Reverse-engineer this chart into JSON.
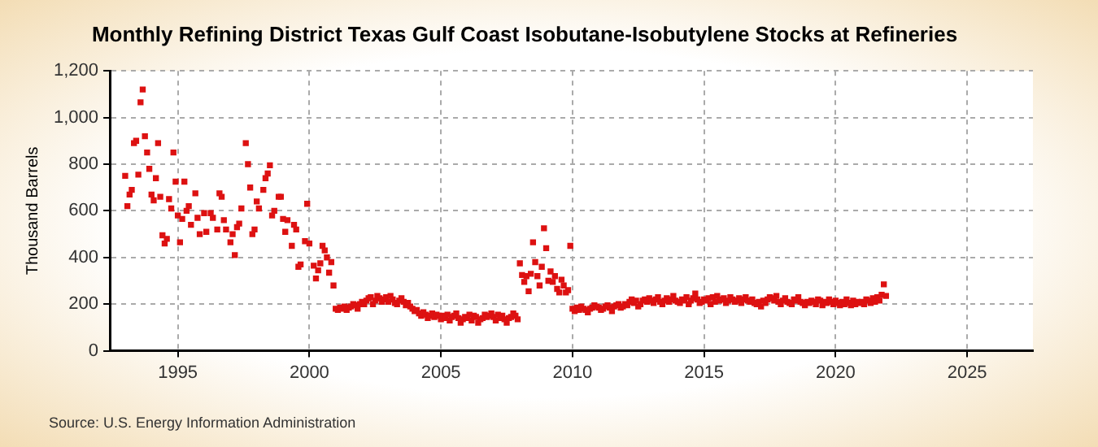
{
  "chart_data": {
    "type": "scatter",
    "title": "Monthly Refining District Texas Gulf Coast Isobutane-Isobutylene Stocks at Refineries",
    "ylabel": "Thousand Barrels",
    "annotations": [
      "Source: U.S. Energy Information Administration"
    ],
    "series": [
      {
        "color": "#dd1111",
        "x": [
          "1993-01",
          "1993-02",
          "1993-03",
          "1993-04",
          "1993-05",
          "1993-06",
          "1993-07",
          "1993-08",
          "1993-09",
          "1993-10",
          "1993-11",
          "1993-12",
          "1994-01",
          "1994-02",
          "1994-03",
          "1994-04",
          "1994-05",
          "1994-06",
          "1994-07",
          "1994-08",
          "1994-09",
          "1994-10",
          "1994-11",
          "1994-12",
          "1995-01",
          "1995-02",
          "1995-03",
          "1995-04",
          "1995-05",
          "1995-06",
          "1995-07",
          "1995-09",
          "1995-10",
          "1995-11",
          "1996-01",
          "1996-02",
          "1996-04",
          "1996-05",
          "1996-07",
          "1996-08",
          "1996-09",
          "1996-10",
          "1996-11",
          "1997-01",
          "1997-02",
          "1997-03",
          "1997-04",
          "1997-05",
          "1997-06",
          "1997-08",
          "1997-09",
          "1997-10",
          "1997-11",
          "1997-12",
          "1998-01",
          "1998-02",
          "1998-04",
          "1998-05",
          "1998-06",
          "1998-07",
          "1998-08",
          "1998-09",
          "1998-11",
          "1998-12",
          "1999-01",
          "1999-02",
          "1999-03",
          "1999-05",
          "1999-06",
          "1999-07",
          "1999-08",
          "1999-09",
          "1999-11",
          "1999-12",
          "2000-01",
          "2000-03",
          "2000-04",
          "2000-05",
          "2000-06",
          "2000-07",
          "2000-08",
          "2000-09",
          "2000-10",
          "2000-11",
          "2000-12",
          "2001-01",
          "2001-02",
          "2001-03",
          "2001-04",
          "2001-05",
          "2001-06",
          "2001-07",
          "2001-08",
          "2001-09",
          "2001-10",
          "2001-11",
          "2001-12",
          "2002-01",
          "2002-02",
          "2002-03",
          "2002-04",
          "2002-05",
          "2002-06",
          "2002-07",
          "2002-08",
          "2002-09",
          "2002-10",
          "2002-11",
          "2002-12",
          "2003-01",
          "2003-02",
          "2003-03",
          "2003-04",
          "2003-05",
          "2003-06",
          "2003-07",
          "2003-08",
          "2003-09",
          "2003-10",
          "2003-11",
          "2003-12",
          "2004-01",
          "2004-02",
          "2004-03",
          "2004-04",
          "2004-05",
          "2004-06",
          "2004-07",
          "2004-08",
          "2004-09",
          "2004-10",
          "2004-11",
          "2004-12",
          "2005-01",
          "2005-02",
          "2005-03",
          "2005-04",
          "2005-05",
          "2005-06",
          "2005-07",
          "2005-08",
          "2005-09",
          "2005-10",
          "2005-11",
          "2005-12",
          "2006-01",
          "2006-02",
          "2006-03",
          "2006-04",
          "2006-05",
          "2006-06",
          "2006-07",
          "2006-08",
          "2006-09",
          "2006-10",
          "2006-11",
          "2006-12",
          "2007-01",
          "2007-02",
          "2007-03",
          "2007-04",
          "2007-05",
          "2007-06",
          "2007-07",
          "2007-08",
          "2007-09",
          "2007-10",
          "2007-11",
          "2007-12",
          "2008-01",
          "2008-02",
          "2008-03",
          "2008-04",
          "2008-05",
          "2008-06",
          "2008-07",
          "2008-08",
          "2008-09",
          "2008-10",
          "2008-11",
          "2008-12",
          "2009-01",
          "2009-02",
          "2009-03",
          "2009-04",
          "2009-05",
          "2009-06",
          "2009-07",
          "2009-08",
          "2009-09",
          "2009-10",
          "2009-11",
          "2009-12",
          "2010-01",
          "2010-02",
          "2010-03",
          "2010-04",
          "2010-05",
          "2010-06",
          "2010-07",
          "2010-08",
          "2010-09",
          "2010-10",
          "2010-11",
          "2010-12",
          "2011-01",
          "2011-02",
          "2011-03",
          "2011-04",
          "2011-05",
          "2011-06",
          "2011-07",
          "2011-08",
          "2011-09",
          "2011-10",
          "2011-11",
          "2011-12",
          "2012-01",
          "2012-02",
          "2012-03",
          "2012-04",
          "2012-05",
          "2012-06",
          "2012-07",
          "2012-08",
          "2012-09",
          "2012-10",
          "2012-11",
          "2012-12",
          "2013-01",
          "2013-02",
          "2013-03",
          "2013-04",
          "2013-05",
          "2013-06",
          "2013-07",
          "2013-08",
          "2013-09",
          "2013-10",
          "2013-11",
          "2013-12",
          "2014-01",
          "2014-02",
          "2014-03",
          "2014-04",
          "2014-05",
          "2014-06",
          "2014-07",
          "2014-08",
          "2014-09",
          "2014-10",
          "2014-11",
          "2014-12",
          "2015-01",
          "2015-02",
          "2015-03",
          "2015-04",
          "2015-05",
          "2015-06",
          "2015-07",
          "2015-08",
          "2015-09",
          "2015-10",
          "2015-11",
          "2015-12",
          "2016-01",
          "2016-02",
          "2016-03",
          "2016-04",
          "2016-05",
          "2016-06",
          "2016-07",
          "2016-08",
          "2016-09",
          "2016-10",
          "2016-11",
          "2016-12",
          "2017-01",
          "2017-02",
          "2017-03",
          "2017-04",
          "2017-05",
          "2017-06",
          "2017-07",
          "2017-08",
          "2017-09",
          "2017-10",
          "2017-11",
          "2017-12",
          "2018-01",
          "2018-02",
          "2018-03",
          "2018-04",
          "2018-05",
          "2018-06",
          "2018-07",
          "2018-08",
          "2018-09",
          "2018-10",
          "2018-11",
          "2018-12",
          "2019-01",
          "2019-02",
          "2019-03",
          "2019-04",
          "2019-05",
          "2019-06",
          "2019-07",
          "2019-08",
          "2019-09",
          "2019-10",
          "2019-11",
          "2019-12",
          "2020-01",
          "2020-02",
          "2020-03",
          "2020-04",
          "2020-05",
          "2020-06",
          "2020-07",
          "2020-08",
          "2020-09",
          "2020-10",
          "2020-11",
          "2020-12",
          "2021-01",
          "2021-02",
          "2021-03",
          "2021-04",
          "2021-05",
          "2021-06",
          "2021-07",
          "2021-08",
          "2021-09",
          "2021-10",
          "2021-11",
          "2021-12"
        ],
        "values": [
          750,
          620,
          670,
          690,
          890,
          900,
          755,
          1065,
          1120,
          920,
          850,
          780,
          670,
          645,
          740,
          890,
          660,
          495,
          460,
          480,
          650,
          610,
          850,
          725,
          580,
          465,
          565,
          725,
          600,
          620,
          540,
          675,
          570,
          500,
          590,
          510,
          590,
          570,
          520,
          675,
          660,
          560,
          520,
          465,
          500,
          410,
          530,
          545,
          610,
          890,
          800,
          700,
          500,
          520,
          640,
          610,
          690,
          740,
          760,
          795,
          580,
          600,
          660,
          660,
          565,
          510,
          560,
          450,
          540,
          520,
          360,
          370,
          470,
          630,
          460,
          365,
          310,
          345,
          375,
          450,
          430,
          400,
          335,
          380,
          280,
          180,
          175,
          185,
          180,
          190,
          175,
          185,
          190,
          200,
          195,
          180,
          200,
          210,
          200,
          215,
          225,
          230,
          200,
          215,
          235,
          225,
          210,
          220,
          230,
          210,
          235,
          220,
          205,
          200,
          215,
          225,
          210,
          195,
          205,
          190,
          180,
          170,
          175,
          160,
          150,
          165,
          155,
          140,
          150,
          160,
          145,
          155,
          150,
          135,
          150,
          140,
          155,
          130,
          145,
          150,
          160,
          140,
          120,
          135,
          145,
          140,
          155,
          130,
          150,
          145,
          120,
          135,
          140,
          155,
          145,
          150,
          160,
          145,
          130,
          155,
          140,
          150,
          135,
          120,
          140,
          145,
          160,
          150,
          135,
          375,
          325,
          295,
          320,
          255,
          330,
          465,
          380,
          320,
          280,
          360,
          525,
          440,
          300,
          340,
          295,
          320,
          265,
          250,
          305,
          280,
          250,
          260,
          450,
          180,
          170,
          185,
          175,
          190,
          180,
          175,
          165,
          180,
          185,
          195,
          190,
          185,
          175,
          180,
          190,
          195,
          185,
          170,
          190,
          195,
          200,
          185,
          190,
          200,
          195,
          210,
          220,
          205,
          215,
          190,
          200,
          215,
          220,
          210,
          225,
          215,
          205,
          220,
          230,
          210,
          200,
          215,
          225,
          210,
          220,
          235,
          215,
          210,
          205,
          220,
          215,
          230,
          200,
          215,
          225,
          245,
          220,
          205,
          210,
          220,
          215,
          225,
          200,
          230,
          210,
          235,
          215,
          220,
          225,
          205,
          215,
          230,
          220,
          210,
          215,
          225,
          205,
          220,
          230,
          215,
          210,
          220,
          205,
          200,
          210,
          190,
          215,
          205,
          220,
          230,
          225,
          215,
          235,
          210,
          200,
          215,
          225,
          210,
          205,
          200,
          220,
          215,
          230,
          210,
          205,
          195,
          210,
          205,
          215,
          210,
          200,
          220,
          215,
          195,
          210,
          205,
          220,
          210,
          200,
          215,
          205,
          195,
          210,
          200,
          220,
          205,
          195,
          215,
          200,
          210,
          205,
          210,
          200,
          220,
          215,
          205,
          225,
          210,
          230,
          215,
          240,
          285,
          235
        ]
      }
    ],
    "xlim": [
      "1992-06",
      "2027-07"
    ],
    "xticks": [
      "1995",
      "2000",
      "2005",
      "2010",
      "2015",
      "2020",
      "2025"
    ],
    "ylim": [
      0,
      1200
    ],
    "yticks": [
      0,
      200,
      400,
      600,
      800,
      {
        "value": 1000,
        "label": "1,000"
      },
      {
        "value": 1200,
        "label": "1,200"
      }
    ],
    "grid": true,
    "legend": false,
    "marker": "square"
  }
}
